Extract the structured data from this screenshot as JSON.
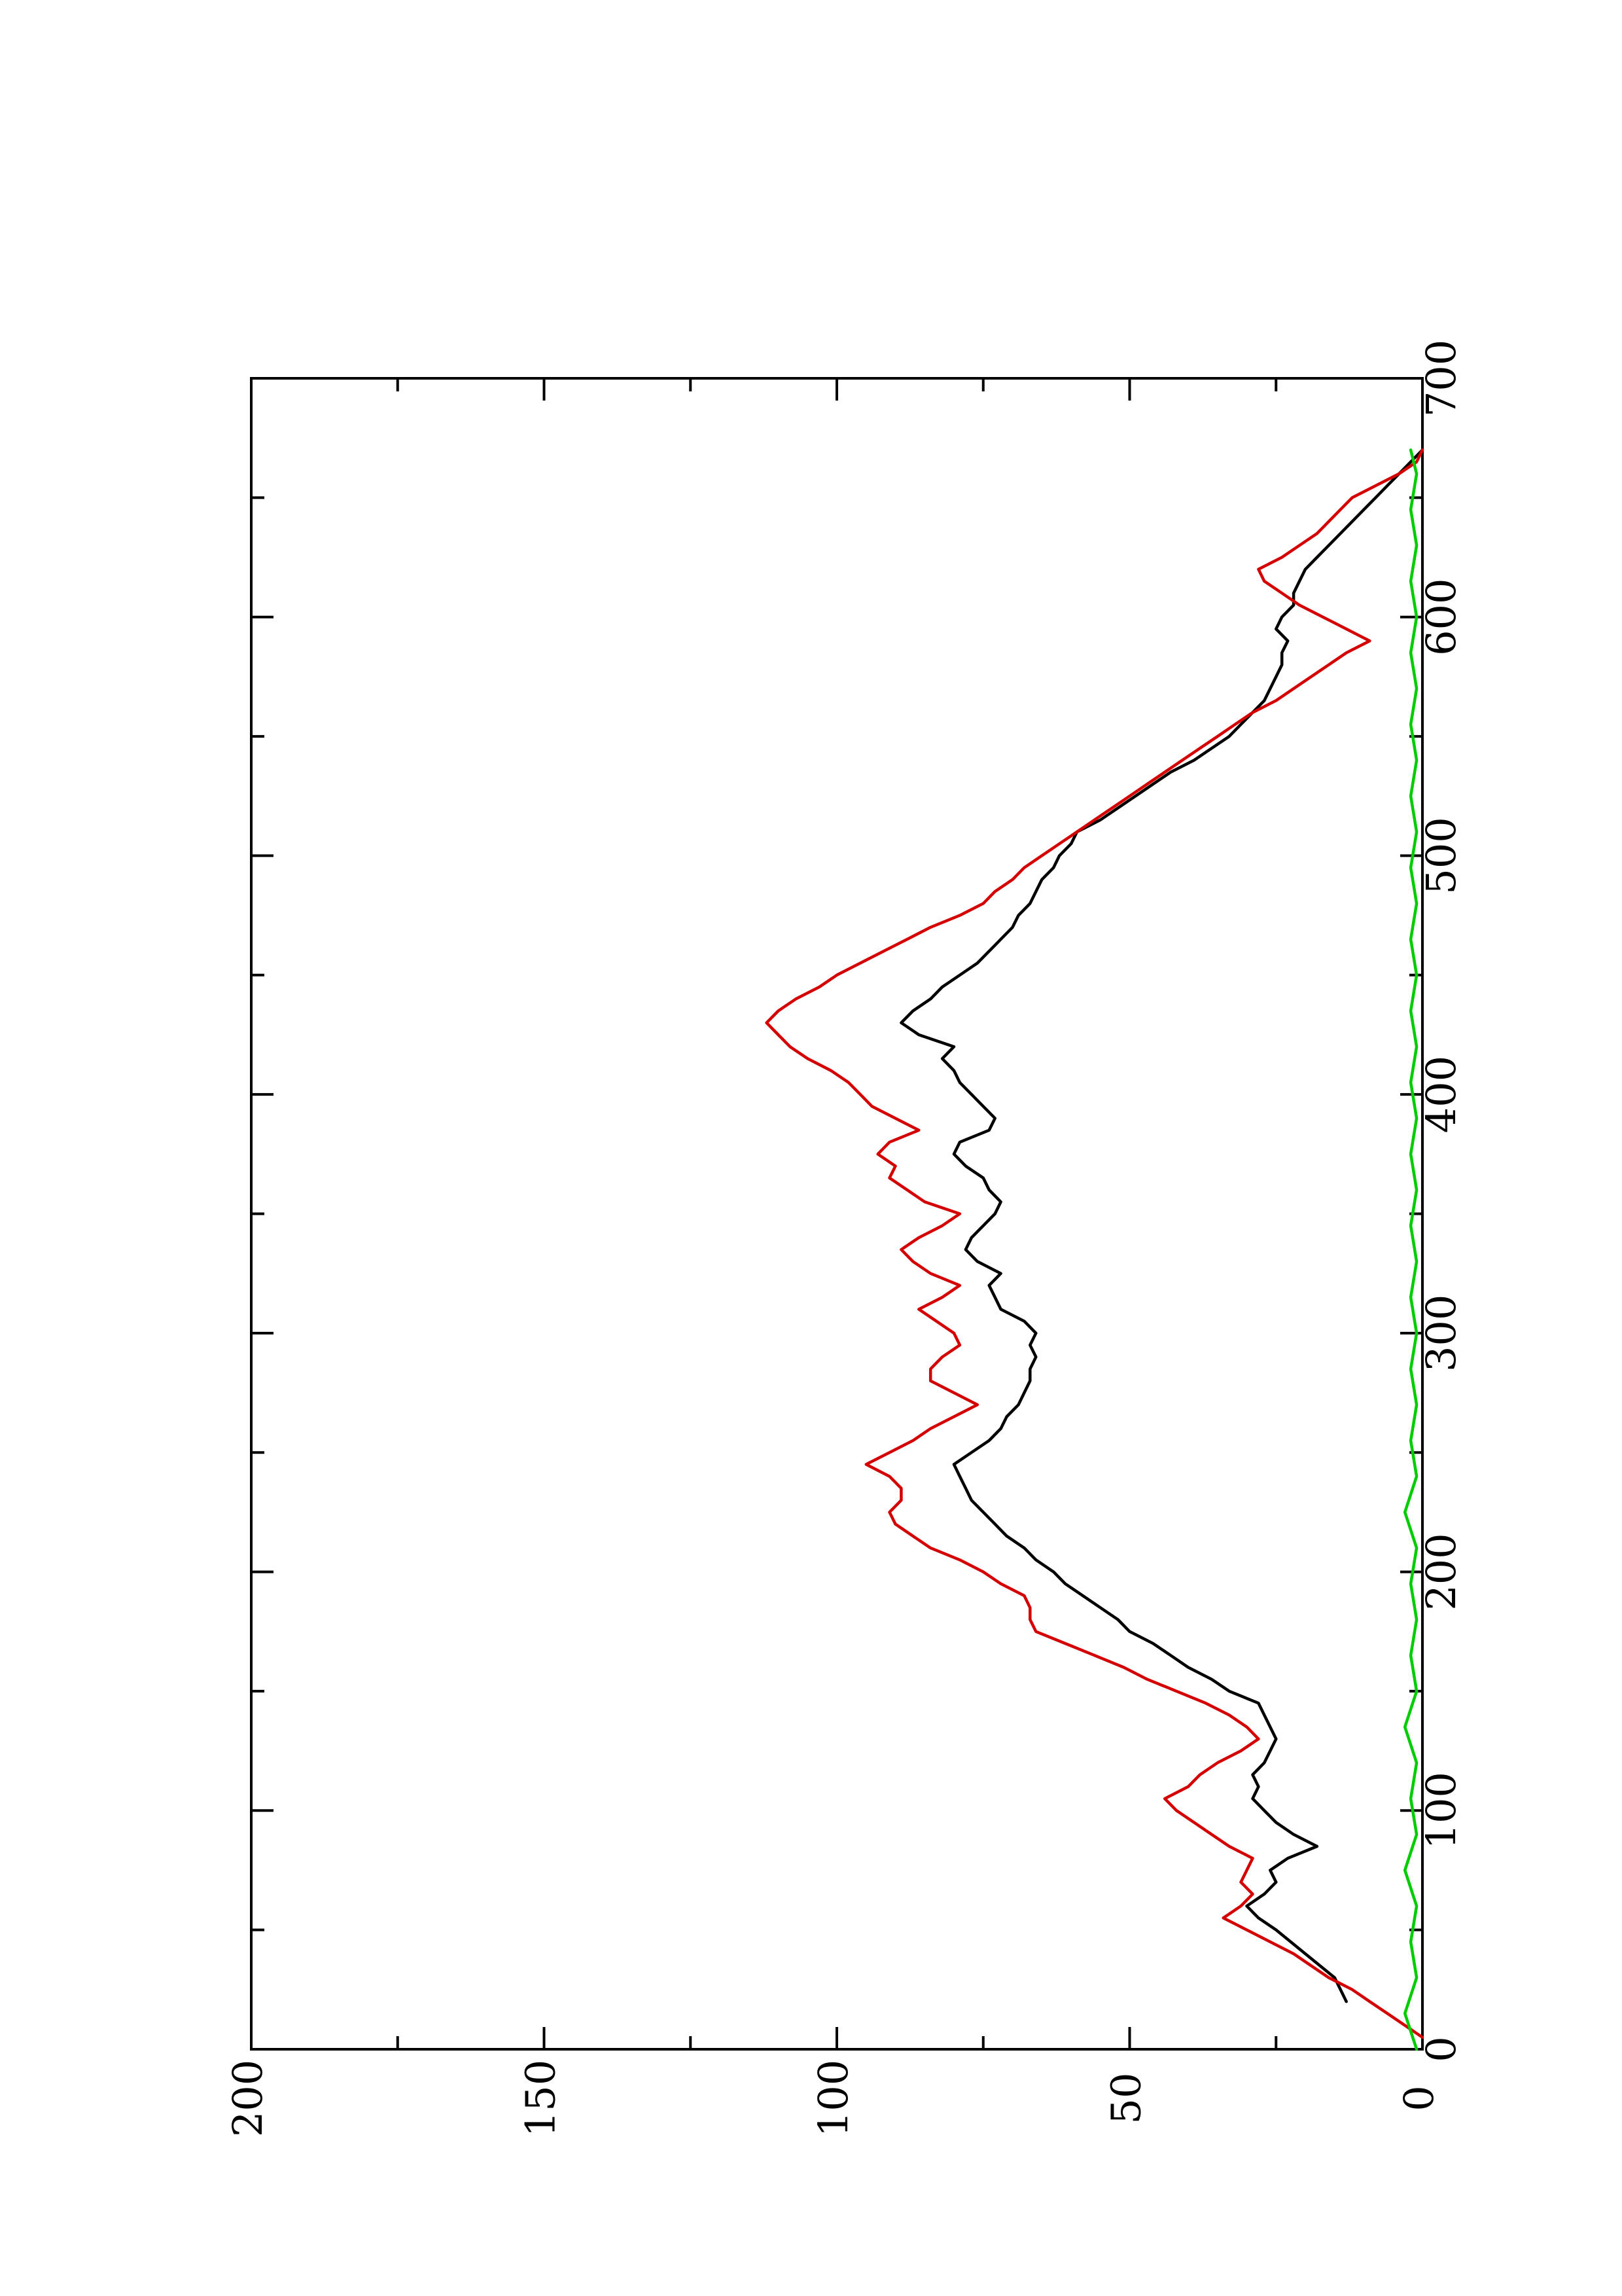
{
  "chart_data": {
    "type": "line",
    "orientation": "rotated-90-ccw",
    "title": "",
    "xlabel": "",
    "ylabel": "",
    "xlim": [
      0,
      700
    ],
    "ylim": [
      0,
      200
    ],
    "x_ticks": [
      0,
      100,
      200,
      300,
      400,
      500,
      600,
      700
    ],
    "x_minor_ticks": [
      50,
      150,
      250,
      350,
      450,
      550,
      650
    ],
    "y_ticks": [
      0,
      50,
      100,
      150,
      200
    ],
    "y_minor_ticks": [
      25,
      75,
      125,
      175
    ],
    "grid": false,
    "legend": "none",
    "series": [
      {
        "color": "#000000",
        "points": [
          [
            20,
            13
          ],
          [
            30,
            15
          ],
          [
            40,
            20
          ],
          [
            50,
            25
          ],
          [
            55,
            28
          ],
          [
            60,
            30
          ],
          [
            65,
            27
          ],
          [
            70,
            25
          ],
          [
            75,
            26
          ],
          [
            80,
            23
          ],
          [
            85,
            18
          ],
          [
            90,
            22
          ],
          [
            95,
            25
          ],
          [
            100,
            27
          ],
          [
            105,
            29
          ],
          [
            110,
            28
          ],
          [
            115,
            29
          ],
          [
            120,
            27
          ],
          [
            125,
            26
          ],
          [
            130,
            25
          ],
          [
            140,
            27
          ],
          [
            145,
            28
          ],
          [
            150,
            33
          ],
          [
            155,
            36
          ],
          [
            160,
            40
          ],
          [
            165,
            43
          ],
          [
            170,
            46
          ],
          [
            175,
            50
          ],
          [
            180,
            52
          ],
          [
            185,
            55
          ],
          [
            190,
            58
          ],
          [
            195,
            61
          ],
          [
            200,
            63
          ],
          [
            205,
            66
          ],
          [
            210,
            68
          ],
          [
            215,
            71
          ],
          [
            220,
            73
          ],
          [
            225,
            75
          ],
          [
            230,
            77
          ],
          [
            235,
            78
          ],
          [
            240,
            79
          ],
          [
            245,
            80
          ],
          [
            250,
            77
          ],
          [
            255,
            74
          ],
          [
            260,
            72
          ],
          [
            265,
            71
          ],
          [
            270,
            69
          ],
          [
            275,
            68
          ],
          [
            280,
            67
          ],
          [
            285,
            67
          ],
          [
            290,
            66
          ],
          [
            295,
            67
          ],
          [
            300,
            66
          ],
          [
            305,
            68
          ],
          [
            310,
            72
          ],
          [
            315,
            73
          ],
          [
            320,
            74
          ],
          [
            325,
            72
          ],
          [
            330,
            76
          ],
          [
            335,
            78
          ],
          [
            340,
            77
          ],
          [
            345,
            75
          ],
          [
            350,
            73
          ],
          [
            355,
            72
          ],
          [
            360,
            74
          ],
          [
            365,
            75
          ],
          [
            370,
            78
          ],
          [
            375,
            80
          ],
          [
            380,
            79
          ],
          [
            385,
            74
          ],
          [
            390,
            73
          ],
          [
            395,
            75
          ],
          [
            400,
            77
          ],
          [
            405,
            79
          ],
          [
            410,
            80
          ],
          [
            415,
            82
          ],
          [
            420,
            80
          ],
          [
            425,
            86
          ],
          [
            430,
            89
          ],
          [
            435,
            87
          ],
          [
            440,
            84
          ],
          [
            445,
            82
          ],
          [
            450,
            79
          ],
          [
            455,
            76
          ],
          [
            460,
            74
          ],
          [
            465,
            72
          ],
          [
            470,
            70
          ],
          [
            475,
            69
          ],
          [
            480,
            67
          ],
          [
            485,
            66
          ],
          [
            490,
            65
          ],
          [
            495,
            63
          ],
          [
            500,
            62
          ],
          [
            505,
            60
          ],
          [
            510,
            59
          ],
          [
            515,
            55
          ],
          [
            520,
            52
          ],
          [
            525,
            49
          ],
          [
            530,
            46
          ],
          [
            535,
            43
          ],
          [
            540,
            39
          ],
          [
            545,
            36
          ],
          [
            550,
            33
          ],
          [
            555,
            31
          ],
          [
            560,
            29
          ],
          [
            565,
            27
          ],
          [
            570,
            26
          ],
          [
            575,
            25
          ],
          [
            580,
            24
          ],
          [
            585,
            24
          ],
          [
            590,
            23
          ],
          [
            595,
            25
          ],
          [
            600,
            24
          ],
          [
            605,
            22
          ],
          [
            610,
            22
          ],
          [
            615,
            21
          ],
          [
            620,
            20
          ],
          [
            625,
            18
          ],
          [
            630,
            16
          ],
          [
            635,
            14
          ],
          [
            640,
            12
          ],
          [
            645,
            10
          ],
          [
            650,
            8
          ],
          [
            655,
            6
          ],
          [
            660,
            4
          ],
          [
            665,
            2
          ],
          [
            670,
            0
          ]
        ]
      },
      {
        "color": "#d40000",
        "points": [
          [
            5,
            0
          ],
          [
            10,
            3
          ],
          [
            15,
            6
          ],
          [
            20,
            9
          ],
          [
            25,
            12
          ],
          [
            30,
            16
          ],
          [
            40,
            22
          ],
          [
            50,
            30
          ],
          [
            55,
            34
          ],
          [
            60,
            31
          ],
          [
            65,
            29
          ],
          [
            70,
            31
          ],
          [
            75,
            30
          ],
          [
            80,
            29
          ],
          [
            85,
            33
          ],
          [
            90,
            36
          ],
          [
            95,
            39
          ],
          [
            100,
            42
          ],
          [
            105,
            44
          ],
          [
            110,
            40
          ],
          [
            115,
            38
          ],
          [
            120,
            35
          ],
          [
            125,
            31
          ],
          [
            130,
            28
          ],
          [
            135,
            30
          ],
          [
            140,
            33
          ],
          [
            145,
            37
          ],
          [
            150,
            42
          ],
          [
            155,
            47
          ],
          [
            160,
            51
          ],
          [
            165,
            56
          ],
          [
            170,
            61
          ],
          [
            175,
            66
          ],
          [
            180,
            67
          ],
          [
            185,
            67
          ],
          [
            190,
            68
          ],
          [
            195,
            72
          ],
          [
            200,
            75
          ],
          [
            205,
            79
          ],
          [
            210,
            84
          ],
          [
            215,
            87
          ],
          [
            220,
            90
          ],
          [
            225,
            91
          ],
          [
            230,
            89
          ],
          [
            235,
            89
          ],
          [
            240,
            91
          ],
          [
            245,
            95
          ],
          [
            250,
            91
          ],
          [
            255,
            87
          ],
          [
            260,
            84
          ],
          [
            265,
            80
          ],
          [
            270,
            76
          ],
          [
            275,
            80
          ],
          [
            280,
            84
          ],
          [
            285,
            84
          ],
          [
            290,
            82
          ],
          [
            295,
            79
          ],
          [
            300,
            80
          ],
          [
            305,
            83
          ],
          [
            310,
            86
          ],
          [
            315,
            82
          ],
          [
            320,
            79
          ],
          [
            325,
            84
          ],
          [
            330,
            87
          ],
          [
            335,
            89
          ],
          [
            340,
            86
          ],
          [
            345,
            82
          ],
          [
            350,
            79
          ],
          [
            355,
            85
          ],
          [
            360,
            88
          ],
          [
            365,
            91
          ],
          [
            370,
            90
          ],
          [
            375,
            93
          ],
          [
            380,
            91
          ],
          [
            385,
            86
          ],
          [
            390,
            90
          ],
          [
            395,
            94
          ],
          [
            400,
            96
          ],
          [
            405,
            98
          ],
          [
            410,
            101
          ],
          [
            415,
            105
          ],
          [
            420,
            108
          ],
          [
            425,
            110
          ],
          [
            430,
            112
          ],
          [
            435,
            110
          ],
          [
            440,
            107
          ],
          [
            445,
            103
          ],
          [
            450,
            100
          ],
          [
            455,
            96
          ],
          [
            460,
            92
          ],
          [
            465,
            88
          ],
          [
            470,
            84
          ],
          [
            475,
            79
          ],
          [
            480,
            75
          ],
          [
            485,
            73
          ],
          [
            490,
            70
          ],
          [
            495,
            68
          ],
          [
            500,
            65
          ],
          [
            505,
            62
          ],
          [
            510,
            59
          ],
          [
            515,
            56
          ],
          [
            520,
            53
          ],
          [
            525,
            50
          ],
          [
            530,
            47
          ],
          [
            535,
            44
          ],
          [
            540,
            41
          ],
          [
            545,
            38
          ],
          [
            550,
            35
          ],
          [
            555,
            32
          ],
          [
            560,
            29
          ],
          [
            565,
            25
          ],
          [
            570,
            22
          ],
          [
            575,
            19
          ],
          [
            580,
            16
          ],
          [
            585,
            13
          ],
          [
            590,
            9
          ],
          [
            595,
            13
          ],
          [
            600,
            17
          ],
          [
            605,
            21
          ],
          [
            610,
            24
          ],
          [
            615,
            27
          ],
          [
            620,
            28
          ],
          [
            625,
            24
          ],
          [
            630,
            21
          ],
          [
            635,
            18
          ],
          [
            640,
            16
          ],
          [
            645,
            14
          ],
          [
            650,
            12
          ],
          [
            655,
            8
          ],
          [
            660,
            4
          ],
          [
            665,
            1
          ],
          [
            670,
            0
          ]
        ]
      },
      {
        "color": "#00cc00",
        "points": [
          [
            0,
            1
          ],
          [
            15,
            3
          ],
          [
            30,
            1
          ],
          [
            45,
            2
          ],
          [
            60,
            1
          ],
          [
            75,
            3
          ],
          [
            90,
            1
          ],
          [
            105,
            2
          ],
          [
            120,
            1
          ],
          [
            135,
            3
          ],
          [
            150,
            1
          ],
          [
            165,
            2
          ],
          [
            180,
            1
          ],
          [
            195,
            2
          ],
          [
            210,
            1
          ],
          [
            225,
            3
          ],
          [
            240,
            1
          ],
          [
            255,
            2
          ],
          [
            270,
            1
          ],
          [
            285,
            2
          ],
          [
            300,
            1
          ],
          [
            315,
            2
          ],
          [
            330,
            1
          ],
          [
            345,
            2
          ],
          [
            360,
            1
          ],
          [
            375,
            2
          ],
          [
            390,
            1
          ],
          [
            405,
            2
          ],
          [
            420,
            1
          ],
          [
            435,
            2
          ],
          [
            450,
            1
          ],
          [
            465,
            2
          ],
          [
            480,
            1
          ],
          [
            495,
            2
          ],
          [
            510,
            1
          ],
          [
            525,
            2
          ],
          [
            540,
            1
          ],
          [
            555,
            2
          ],
          [
            570,
            1
          ],
          [
            585,
            2
          ],
          [
            600,
            1
          ],
          [
            615,
            2
          ],
          [
            630,
            1
          ],
          [
            645,
            2
          ],
          [
            660,
            1
          ],
          [
            670,
            2
          ]
        ]
      }
    ]
  }
}
